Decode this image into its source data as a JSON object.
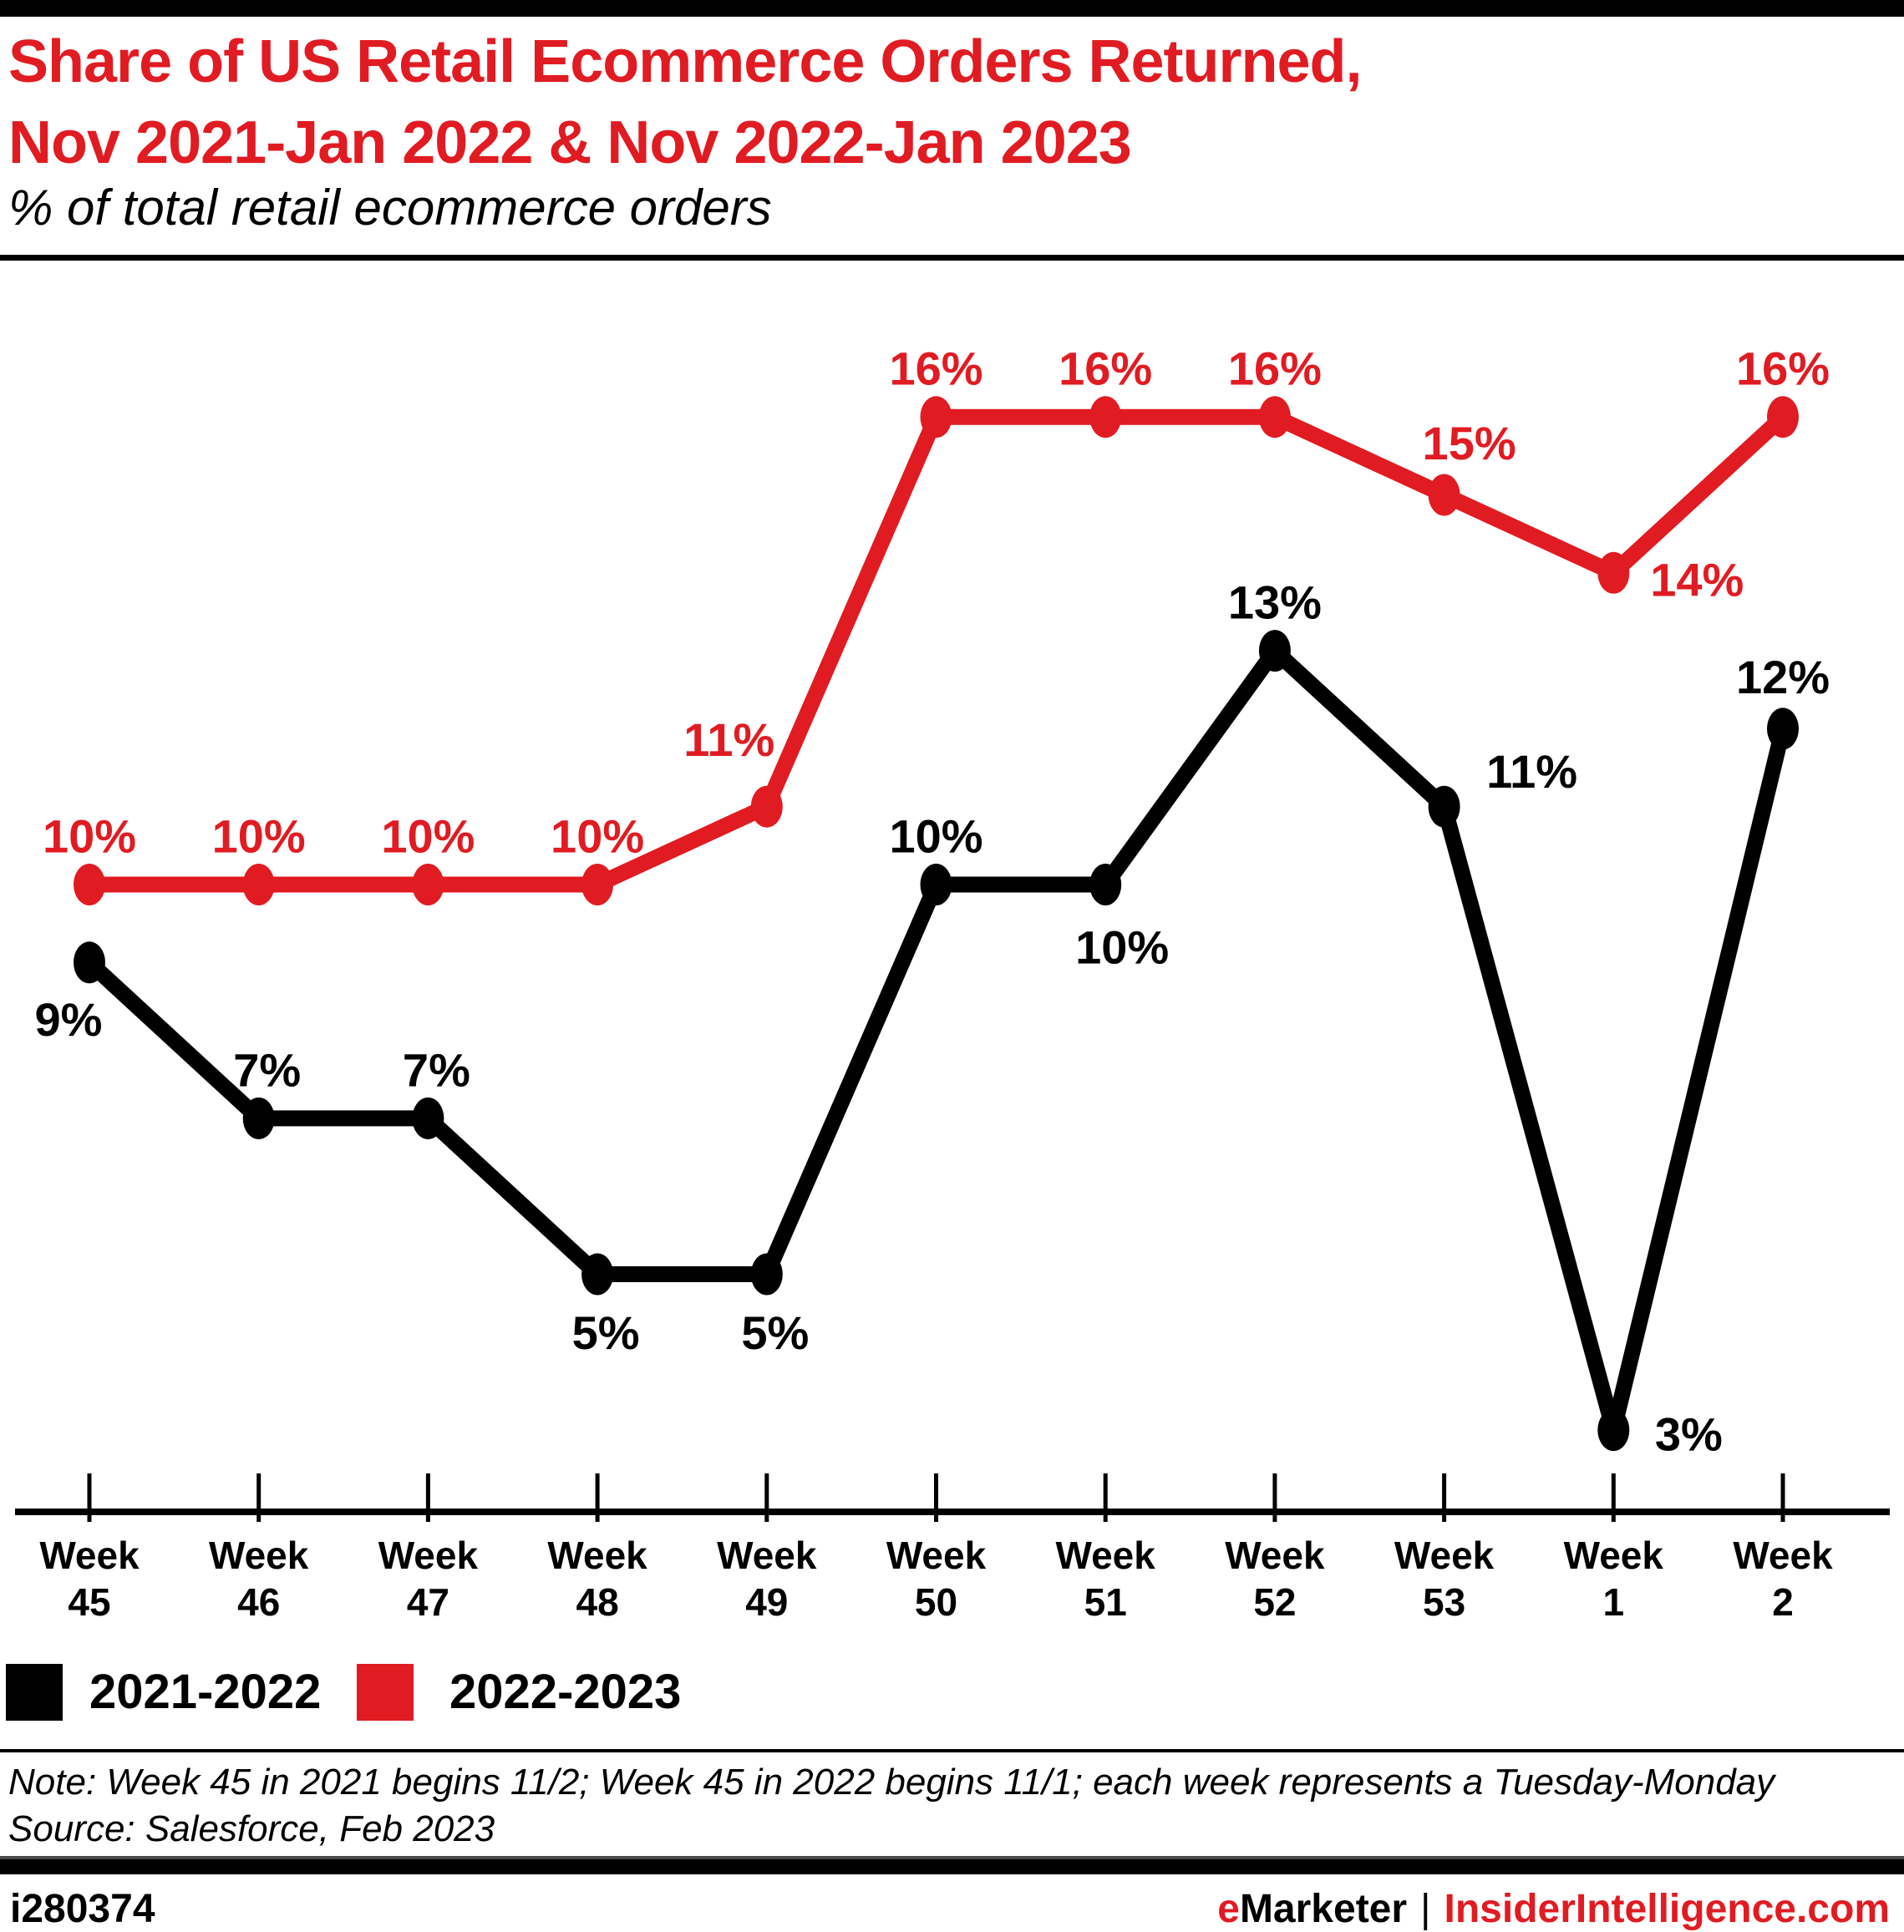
{
  "page": {
    "background": "#ffffff",
    "accent_red": "#e11b22",
    "ink": "#000000"
  },
  "header": {
    "title_line1": "Share of US Retail Ecommerce Orders Returned,",
    "title_line2": "Nov 2021-Jan 2022 & Nov 2022-Jan 2023",
    "subtitle": "% of total retail ecommerce orders"
  },
  "chart_data": {
    "type": "line",
    "category_prefix": "Week",
    "categories": [
      "45",
      "46",
      "47",
      "48",
      "49",
      "50",
      "51",
      "52",
      "53",
      "1",
      "2"
    ],
    "unit": "%",
    "series": [
      {
        "name": "2021-2022",
        "color": "#000000",
        "values": [
          9,
          7,
          7,
          5,
          5,
          10,
          10,
          13,
          11,
          3,
          12
        ]
      },
      {
        "name": "2022-2023",
        "color": "#e11b22",
        "values": [
          10,
          10,
          10,
          10,
          11,
          16,
          16,
          16,
          15,
          14,
          16
        ]
      }
    ],
    "xlabel": "",
    "ylabel": "",
    "grid": false,
    "y_axis_labels_shown": false,
    "data_labels_shown": true,
    "legend_position": "bottom-left"
  },
  "legend": {
    "items": [
      {
        "label": "2021-2022",
        "color": "#000000"
      },
      {
        "label": "2022-2023",
        "color": "#e11b22"
      }
    ]
  },
  "footnote": {
    "note": "Note: Week 45 in 2021 begins 11/2; Week 45 in 2022 begins 11/1; each week represents a Tuesday-Monday",
    "source": "Source: Salesforce, Feb 2023"
  },
  "footer": {
    "chart_id": "i280374",
    "brand_first_letter": "e",
    "brand_rest": "Marketer",
    "separator": "|",
    "site": "InsiderIntelligence.com"
  }
}
